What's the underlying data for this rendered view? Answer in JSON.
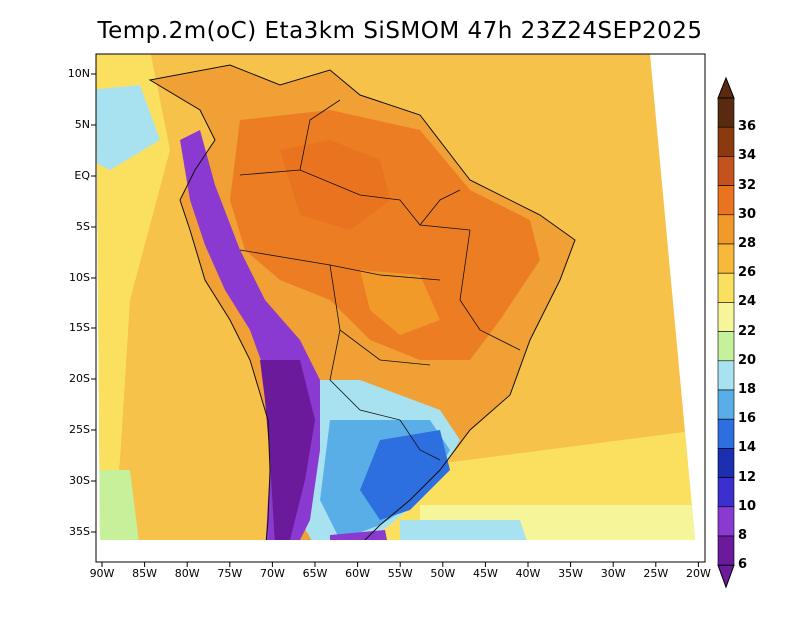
{
  "title": "Temp.2m(oC) Eta3km SiSMOM 47h 23Z24SEP2025",
  "lat_ticks": [
    "10N",
    "5N",
    "EQ",
    "5S",
    "10S",
    "15S",
    "20S",
    "25S",
    "30S",
    "35S"
  ],
  "lon_ticks": [
    "90W",
    "85W",
    "80W",
    "75W",
    "70W",
    "65W",
    "60W",
    "55W",
    "50W",
    "45W",
    "40W",
    "35W",
    "30W",
    "25W",
    "20W"
  ],
  "colorbar": {
    "labels": [
      "36",
      "34",
      "32",
      "30",
      "28",
      "26",
      "24",
      "22",
      "20",
      "18",
      "16",
      "14",
      "12",
      "10",
      "8",
      "6"
    ],
    "colors": [
      "#5a2a10",
      "#8b3a0f",
      "#c4521c",
      "#e9731f",
      "#f19a2a",
      "#f6b93a",
      "#fbe060",
      "#f6f59a",
      "#c6f09a",
      "#a8e2f0",
      "#5aaee8",
      "#2e6fe0",
      "#1b2fb0",
      "#3c2fd0",
      "#8a3ad0",
      "#6a1a9a"
    ]
  },
  "map_colors": {
    "ocean_warm": "#f6c24a",
    "ocean_mid": "#fbe060",
    "ocean_cool": "#f6f59a",
    "land_hot": "#ec7d23",
    "land_warm": "#f0a035",
    "andes": "#8a3ad0",
    "south_cold": "#2e6fe0",
    "south_cool": "#a8e2f0"
  }
}
